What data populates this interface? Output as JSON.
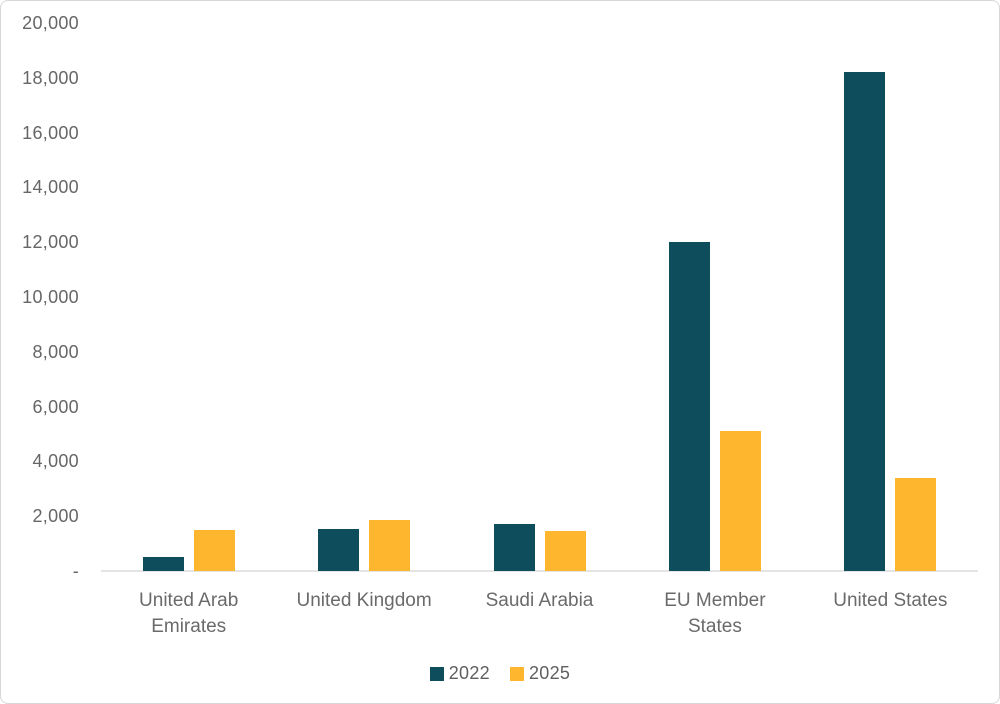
{
  "chart_data": {
    "type": "bar",
    "title": "",
    "xlabel": "",
    "ylabel": "",
    "categories": [
      "United Arab Emirates",
      "United Kingdom",
      "Saudi Arabia",
      "EU Member States",
      "United States"
    ],
    "category_label_lines": [
      [
        "United Arab",
        "Emirates"
      ],
      [
        "United Kingdom"
      ],
      [
        "Saudi Arabia"
      ],
      [
        "EU Member",
        "States"
      ],
      [
        "United States"
      ]
    ],
    "series": [
      {
        "name": "2022",
        "color": "#0d4d5c",
        "values": [
          500,
          1550,
          1700,
          12000,
          18200
        ]
      },
      {
        "name": "2025",
        "color": "#fdb62e",
        "values": [
          1500,
          1850,
          1450,
          5100,
          3400
        ]
      }
    ],
    "ylim": [
      0,
      20000
    ],
    "ytick_interval": 2000,
    "ytick_labels": [
      "-",
      "2,000",
      "4,000",
      "6,000",
      "8,000",
      "10,000",
      "12,000",
      "14,000",
      "16,000",
      "18,000",
      "20,000"
    ],
    "grid": false,
    "legend_position": "bottom-center",
    "axis_text_color": "#666666",
    "axis_line_color": "#e4e4e4"
  }
}
